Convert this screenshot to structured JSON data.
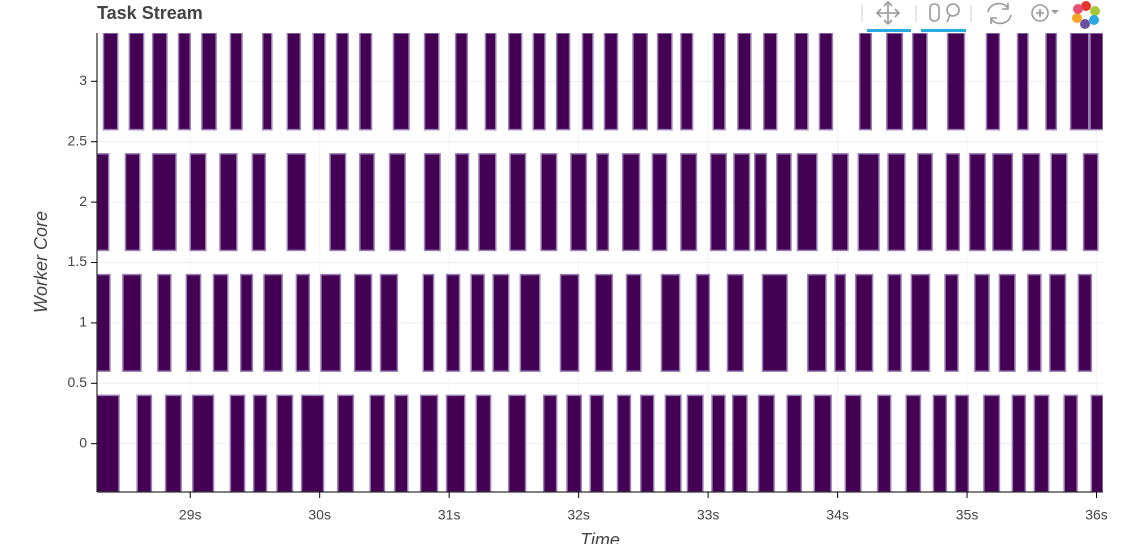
{
  "chart_data": {
    "type": "task_stream",
    "title": "Task Stream",
    "x_label": "Time",
    "y_label": "Worker Core",
    "color": "#440154",
    "edge_color": "#9a7fb5",
    "grid": true,
    "xlim": [
      28.28,
      36.05
    ],
    "ylim": [
      -0.4,
      3.4
    ],
    "bar_height": 0.8,
    "xticks": [
      {
        "value": 29,
        "label": "29s"
      },
      {
        "value": 30,
        "label": "30s"
      },
      {
        "value": 31,
        "label": "31s"
      },
      {
        "value": 32,
        "label": "32s"
      },
      {
        "value": 33,
        "label": "33s"
      },
      {
        "value": 34,
        "label": "34s"
      },
      {
        "value": 35,
        "label": "35s"
      },
      {
        "value": 36,
        "label": "36s"
      }
    ],
    "yticks": [
      0,
      0.5,
      1,
      1.5,
      2,
      2.5,
      3
    ],
    "series": [
      {
        "y": 3,
        "start": [
          28.33,
          28.53,
          28.71,
          28.91,
          29.09,
          29.31,
          29.56,
          29.75,
          29.95,
          30.13,
          30.31,
          30.57,
          30.81,
          31.05,
          31.28,
          31.46,
          31.65,
          31.83,
          32.03,
          32.2,
          32.42,
          32.61,
          32.79,
          33.04,
          33.23,
          33.43,
          33.67,
          33.86,
          34.17,
          34.38,
          34.58,
          34.85,
          35.15,
          35.39,
          35.61,
          35.8,
          35.95
        ],
        "end": [
          28.44,
          28.64,
          28.82,
          29.0,
          29.2,
          29.4,
          29.63,
          29.85,
          30.04,
          30.22,
          30.4,
          30.69,
          30.92,
          31.14,
          31.36,
          31.56,
          31.74,
          31.93,
          32.11,
          32.3,
          32.53,
          32.72,
          32.88,
          33.13,
          33.33,
          33.53,
          33.77,
          33.96,
          34.26,
          34.5,
          34.69,
          34.98,
          35.25,
          35.47,
          35.69,
          35.94,
          36.05
        ]
      },
      {
        "y": 2,
        "start": [
          28.28,
          28.5,
          28.71,
          29.0,
          29.23,
          29.48,
          29.75,
          30.08,
          30.31,
          30.54,
          30.81,
          31.05,
          31.23,
          31.47,
          31.71,
          31.94,
          32.14,
          32.34,
          32.57,
          32.79,
          33.02,
          33.2,
          33.36,
          33.53,
          33.69,
          33.96,
          34.16,
          34.39,
          34.62,
          34.84,
          35.02,
          35.2,
          35.43,
          35.65,
          35.9
        ],
        "end": [
          28.37,
          28.61,
          28.89,
          29.12,
          29.36,
          29.58,
          29.89,
          30.2,
          30.42,
          30.66,
          30.93,
          31.15,
          31.36,
          31.59,
          31.83,
          32.06,
          32.23,
          32.47,
          32.68,
          32.91,
          33.14,
          33.32,
          33.45,
          33.64,
          33.84,
          34.08,
          34.32,
          34.52,
          34.73,
          34.94,
          35.14,
          35.35,
          35.56,
          35.77,
          36.01
        ]
      },
      {
        "y": 1,
        "start": [
          28.28,
          28.48,
          28.75,
          28.97,
          29.18,
          29.39,
          29.57,
          29.82,
          30.01,
          30.27,
          30.47,
          30.8,
          30.98,
          31.17,
          31.34,
          31.55,
          31.86,
          32.13,
          32.37,
          32.64,
          32.91,
          33.15,
          33.42,
          33.77,
          33.98,
          34.14,
          34.39,
          34.57,
          34.83,
          35.06,
          35.25,
          35.47,
          35.64,
          35.86
        ],
        "end": [
          28.38,
          28.62,
          28.85,
          29.08,
          29.29,
          29.48,
          29.71,
          29.92,
          30.16,
          30.4,
          30.6,
          30.88,
          31.08,
          31.27,
          31.46,
          31.7,
          32.0,
          32.26,
          32.48,
          32.78,
          33.01,
          33.27,
          33.61,
          33.91,
          34.06,
          34.27,
          34.49,
          34.71,
          34.93,
          35.17,
          35.37,
          35.57,
          35.76,
          35.96
        ]
      },
      {
        "y": 0,
        "start": [
          28.28,
          28.59,
          28.81,
          29.02,
          29.31,
          29.49,
          29.67,
          29.86,
          30.14,
          30.39,
          30.58,
          30.78,
          30.98,
          31.21,
          31.46,
          31.73,
          31.91,
          32.09,
          32.3,
          32.48,
          32.67,
          32.84,
          33.03,
          33.19,
          33.39,
          33.61,
          33.82,
          34.06,
          34.31,
          34.53,
          34.74,
          34.91,
          35.13,
          35.35,
          35.52,
          35.75,
          35.96
        ],
        "end": [
          28.45,
          28.7,
          28.93,
          29.18,
          29.42,
          29.59,
          29.79,
          30.03,
          30.26,
          30.5,
          30.68,
          30.91,
          31.12,
          31.32,
          31.59,
          31.83,
          32.02,
          32.19,
          32.4,
          32.58,
          32.79,
          32.96,
          33.13,
          33.3,
          33.51,
          33.72,
          33.95,
          34.18,
          34.41,
          34.64,
          34.84,
          35.01,
          35.25,
          35.45,
          35.63,
          35.85,
          36.05
        ]
      }
    ]
  }
}
